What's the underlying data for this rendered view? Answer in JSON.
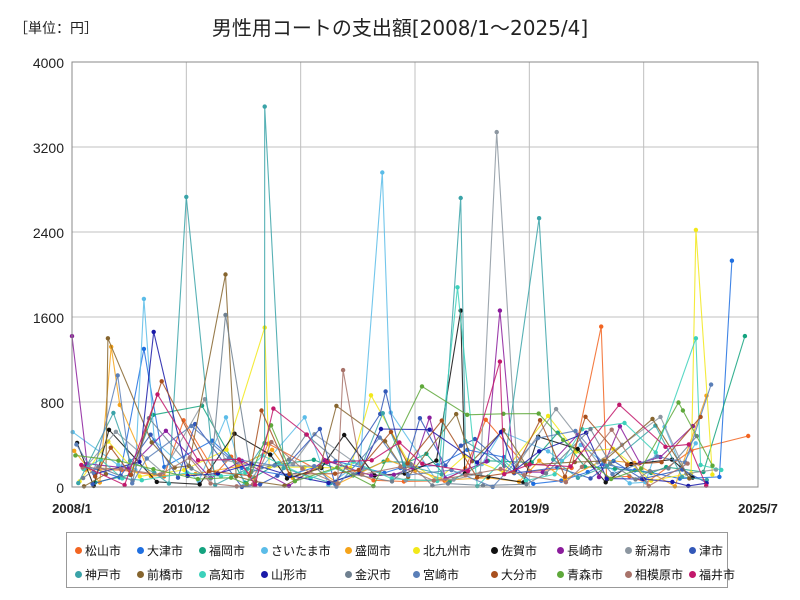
{
  "header": {
    "unit": "［単位：円］",
    "title": "男性用コートの支出額[2008/1～2025/4]"
  },
  "chart_data": {
    "type": "line",
    "title": "男性用コートの支出額[2008/1～2025/4]",
    "unit_label": "［単位：円］",
    "xlabel": "",
    "ylabel": "",
    "ylim": [
      0,
      4000
    ],
    "y_ticks": [
      0,
      800,
      1600,
      2400,
      3200,
      4000
    ],
    "x_ticks": [
      "2008/1",
      "2010/12",
      "2013/11",
      "2016/10",
      "2019/9",
      "2022/8",
      "2025/7"
    ],
    "grid": true,
    "legend_position": "bottom",
    "series": [
      {
        "name": "松山市",
        "color": "#f26522",
        "peaks": [
          {
            "x": "2021/7",
            "y": 1510
          },
          {
            "x": "2025/4",
            "y": 480
          }
        ]
      },
      {
        "name": "大津市",
        "color": "#1f6fe0",
        "peaks": [
          {
            "x": "2009/11",
            "y": 1300
          },
          {
            "x": "2024/11",
            "y": 2130
          }
        ]
      },
      {
        "name": "福岡市",
        "color": "#14a37f",
        "peaks": [
          {
            "x": "2025/3",
            "y": 1420
          }
        ]
      },
      {
        "name": "さいたま市",
        "color": "#5bbce8",
        "peaks": [
          {
            "x": "2009/11",
            "y": 1770
          },
          {
            "x": "2015/12",
            "y": 2960
          }
        ]
      },
      {
        "name": "盛岡市",
        "color": "#f5a31a",
        "peaks": [
          {
            "x": "2009/1",
            "y": 1320
          }
        ]
      },
      {
        "name": "北九州市",
        "color": "#f2e81a",
        "peaks": [
          {
            "x": "2012/12",
            "y": 1500
          },
          {
            "x": "2023/12",
            "y": 2420
          }
        ]
      },
      {
        "name": "佐賀市",
        "color": "#111111",
        "peaks": [
          {
            "x": "2017/12",
            "y": 1660
          }
        ]
      },
      {
        "name": "長崎市",
        "color": "#8b1c9c",
        "peaks": [
          {
            "x": "2008/1",
            "y": 1420
          },
          {
            "x": "2018/12",
            "y": 1660
          }
        ]
      },
      {
        "name": "新潟市",
        "color": "#8c96a0",
        "peaks": [
          {
            "x": "2018/11",
            "y": 3340
          }
        ]
      },
      {
        "name": "津市",
        "color": "#3358b8",
        "peaks": [
          {
            "x": "2016/1",
            "y": 900
          }
        ]
      },
      {
        "name": "神戸市",
        "color": "#3aa3a8",
        "peaks": [
          {
            "x": "2010/12",
            "y": 2730
          },
          {
            "x": "2012/12",
            "y": 3580
          },
          {
            "x": "2017/12",
            "y": 2720
          },
          {
            "x": "2019/12",
            "y": 2530
          }
        ]
      },
      {
        "name": "前橋市",
        "color": "#86652e",
        "peaks": [
          {
            "x": "2008/12",
            "y": 1400
          },
          {
            "x": "2011/12",
            "y": 2000
          }
        ]
      },
      {
        "name": "高知市",
        "color": "#3cd1bb",
        "peaks": [
          {
            "x": "2017/11",
            "y": 1880
          },
          {
            "x": "2023/12",
            "y": 1400
          }
        ]
      },
      {
        "name": "山形市",
        "color": "#1a1aa8",
        "peaks": [
          {
            "x": "2010/2",
            "y": 1460
          }
        ]
      },
      {
        "name": "金沢市",
        "color": "#6f8090",
        "peaks": [
          {
            "x": "2011/12",
            "y": 1620
          }
        ]
      },
      {
        "name": "宮崎市",
        "color": "#5a7fb8",
        "peaks": [
          {
            "x": "2009/3",
            "y": 1050
          }
        ]
      },
      {
        "name": "大分市",
        "color": "#a8501e",
        "peaks": [
          {
            "x": "2012/11",
            "y": 720
          }
        ]
      },
      {
        "name": "青森市",
        "color": "#5ea83a",
        "peaks": [
          {
            "x": "2023/8",
            "y": 720
          }
        ]
      },
      {
        "name": "相模原市",
        "color": "#a8736a",
        "peaks": [
          {
            "x": "2014/12",
            "y": 1100
          }
        ]
      },
      {
        "name": "福井市",
        "color": "#c2186b",
        "peaks": [
          {
            "x": "2018/12",
            "y": 1180
          }
        ]
      }
    ]
  }
}
